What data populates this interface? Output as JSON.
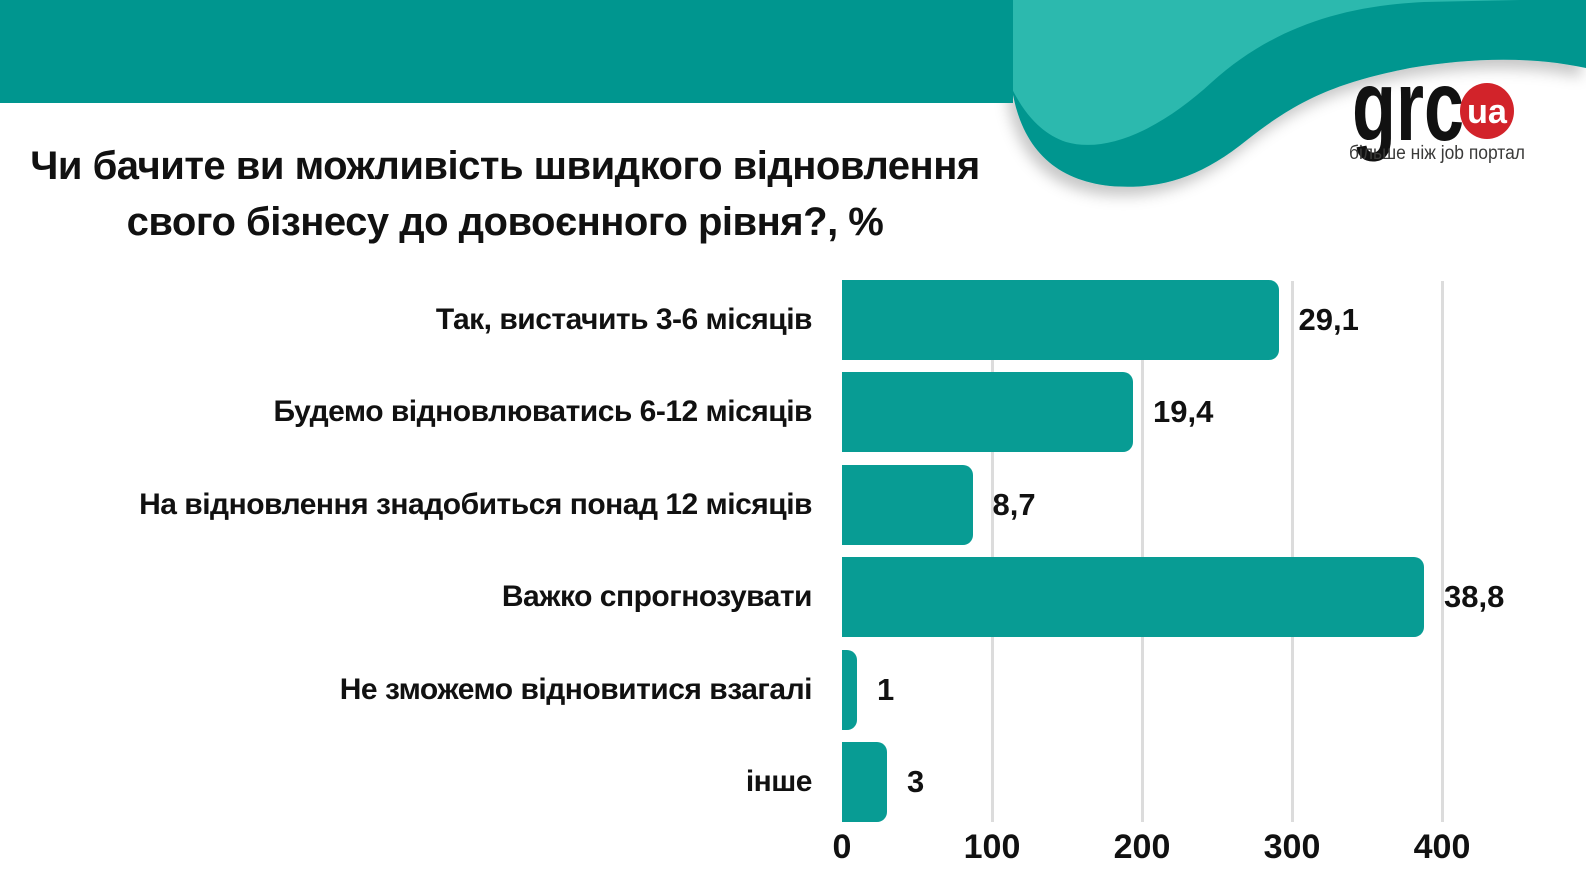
{
  "header": {
    "logo": {
      "text": "grc",
      "badge": "ua",
      "tagline": "більше ніж job портал"
    },
    "colors": {
      "band_teal": "#00968F",
      "wave_light_teal": "#2CB9AE",
      "logo_red": "#D2232A",
      "tagline_gray": "#3A3A39"
    }
  },
  "chart_data": {
    "type": "bar",
    "orientation": "horizontal",
    "title": "Чи бачите ви можливість швидкого відновлення свого бізнесу до довоєнного рівня?, %",
    "title_lines": [
      "Чи бачите ви можливість швидкого відновлення",
      "свого бізнесу до довоєнного рівня?, %"
    ],
    "categories": [
      "Так, вистачить 3-6 місяців",
      "Будемо відновлюватись 6-12 місяців",
      "На відновлення знадобиться понад 12 місяців",
      "Важко спрогнозувати",
      "Не зможемо відновитися взагалі",
      "інше"
    ],
    "values": [
      29.1,
      19.4,
      8.7,
      38.8,
      1,
      3
    ],
    "value_labels": [
      "29,1",
      "19,4",
      "8,7",
      "38,8",
      "1",
      "3"
    ],
    "x_ticks": [
      0,
      100,
      200,
      300,
      400
    ],
    "xlim": [
      0,
      450
    ],
    "axis_note": "axis units = percentage value × 10",
    "grid": true,
    "legend": "none",
    "bar_color": "#089C94",
    "gridline_color": "#DCDCDC",
    "text_color": "#111111"
  }
}
